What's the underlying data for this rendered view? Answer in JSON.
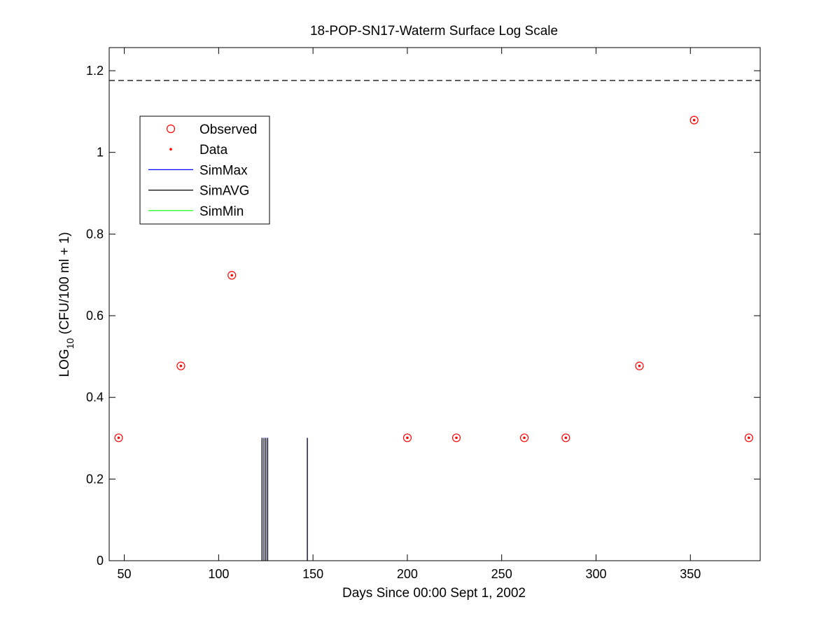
{
  "chart_data": {
    "type": "scatter",
    "title": "18-POP-SN17-Waterm Surface Log Scale",
    "xlabel": "Days Since 00:00 Sept 1, 2002",
    "ylabel": {
      "main": "LOG",
      "sub": "10",
      "rest": " (CFU/100 ml + 1)"
    },
    "xlim": [
      42,
      387
    ],
    "ylim": [
      0,
      1.2566
    ],
    "xticks": [
      50,
      100,
      150,
      200,
      250,
      300,
      350
    ],
    "yticks": [
      0,
      0.2,
      0.4,
      0.6,
      0.8,
      1,
      1.2
    ],
    "ytick_labels": [
      "0",
      "0.2",
      "0.4",
      "0.6",
      "0.8",
      "1",
      "1.2"
    ],
    "reference_line": {
      "y": 1.176,
      "style": "dashed",
      "color": "#000000"
    },
    "legend": {
      "placement": "upper-left",
      "entries": [
        {
          "label": "Observed",
          "marker": "circle",
          "color": "#ff0000"
        },
        {
          "label": "Data",
          "marker": "dot",
          "color": "#ff0000"
        },
        {
          "label": "SimMax",
          "marker": "line",
          "color": "#0000ff"
        },
        {
          "label": "SimAVG",
          "marker": "line",
          "color": "#000000"
        },
        {
          "label": "SimMin",
          "marker": "line",
          "color": "#00ff00"
        }
      ]
    },
    "series": [
      {
        "name": "Observed",
        "type": "scatter",
        "x": [
          47,
          80,
          107,
          200,
          226,
          262,
          284,
          323,
          352,
          381
        ],
        "y": [
          0.301,
          0.477,
          0.699,
          0.301,
          0.301,
          0.301,
          0.301,
          0.477,
          1.079,
          0.301
        ]
      },
      {
        "name": "SimMax",
        "type": "vlines",
        "color": "#0000ff",
        "x": [
          123,
          124,
          125,
          126,
          147
        ],
        "y": [
          0.301,
          0.301,
          0.301,
          0.301,
          0.301
        ]
      },
      {
        "name": "SimAVG",
        "type": "vlines",
        "color": "#000000",
        "x": [
          123,
          124,
          125,
          126,
          147
        ],
        "y": [
          0.3,
          0.3,
          0.3,
          0.3,
          0.3
        ]
      }
    ]
  }
}
